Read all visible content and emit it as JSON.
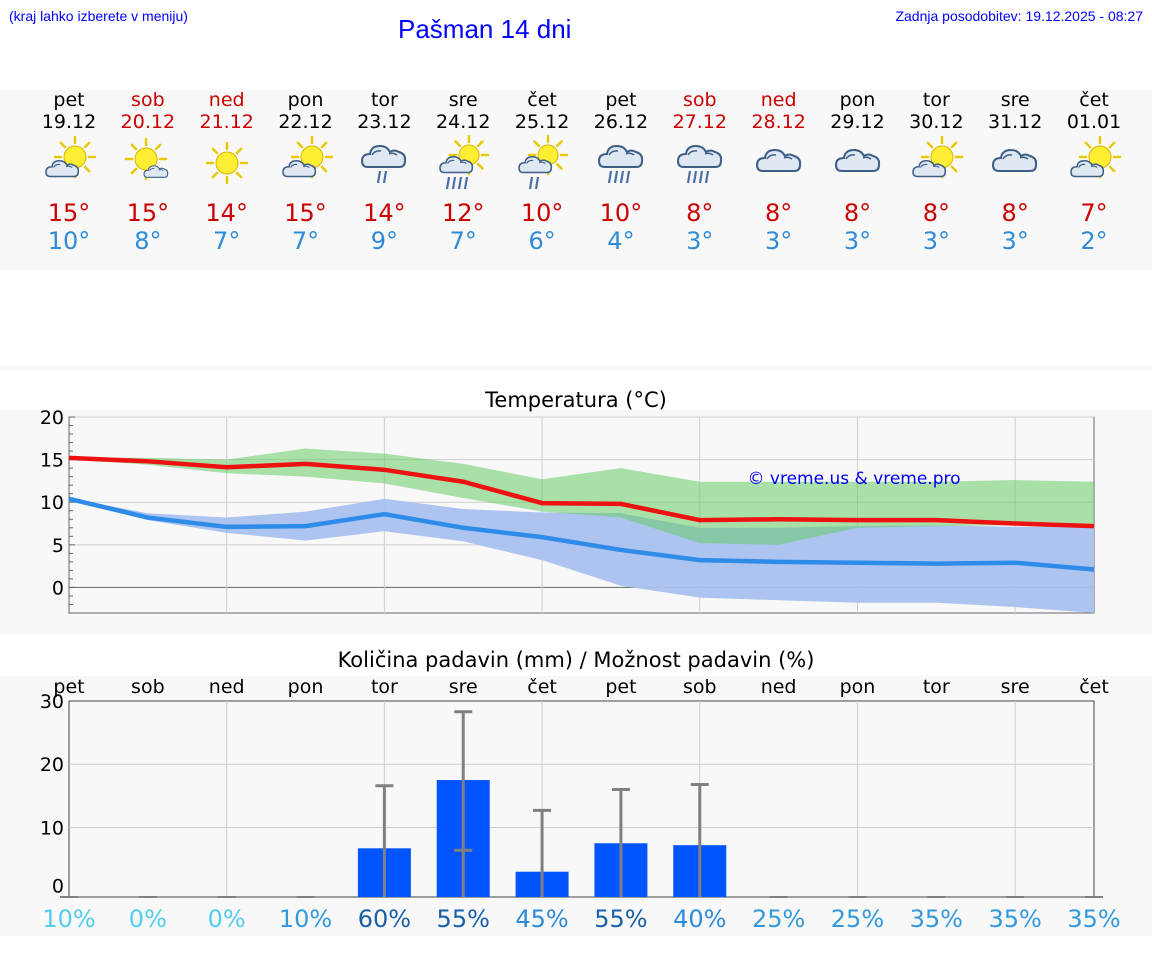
{
  "header": {
    "hint": "(kraj lahko izberete v meniju)",
    "title": "Pašman 14 dni",
    "updated": "Zadnja posodobitev: 19.12.2025 - 08:27"
  },
  "colors": {
    "max_temp": "#cc0000",
    "min_temp": "#2e8bd8",
    "weekend": "#cc0000",
    "precip_bar": "#0055ff",
    "max_band": "#a8e3a0",
    "min_band": "#a9c1f0"
  },
  "days": [
    {
      "name": "pet",
      "date": "19.12",
      "weekend": false,
      "icon": "sun-cloud-icon",
      "max": "15°",
      "min": "10°"
    },
    {
      "name": "sob",
      "date": "20.12",
      "weekend": true,
      "icon": "sun-small-cloud-icon",
      "max": "15°",
      "min": "8°"
    },
    {
      "name": "ned",
      "date": "21.12",
      "weekend": true,
      "icon": "sun-icon",
      "max": "14°",
      "min": "7°"
    },
    {
      "name": "pon",
      "date": "22.12",
      "weekend": false,
      "icon": "sun-cloud-icon",
      "max": "15°",
      "min": "7°"
    },
    {
      "name": "tor",
      "date": "23.12",
      "weekend": false,
      "icon": "cloud-rain-icon",
      "max": "14°",
      "min": "9°"
    },
    {
      "name": "sre",
      "date": "24.12",
      "weekend": false,
      "icon": "sun-cloud-heavy-rain-icon",
      "max": "12°",
      "min": "7°"
    },
    {
      "name": "čet",
      "date": "25.12",
      "weekend": false,
      "icon": "sun-cloud-rain-icon",
      "max": "10°",
      "min": "6°"
    },
    {
      "name": "pet",
      "date": "26.12",
      "weekend": false,
      "icon": "cloud-heavy-rain-icon",
      "max": "10°",
      "min": "4°"
    },
    {
      "name": "sob",
      "date": "27.12",
      "weekend": true,
      "icon": "cloud-heavy-rain-icon",
      "max": "8°",
      "min": "3°"
    },
    {
      "name": "ned",
      "date": "28.12",
      "weekend": true,
      "icon": "cloud-icon",
      "max": "8°",
      "min": "3°"
    },
    {
      "name": "pon",
      "date": "29.12",
      "weekend": false,
      "icon": "cloud-icon",
      "max": "8°",
      "min": "3°"
    },
    {
      "name": "tor",
      "date": "30.12",
      "weekend": false,
      "icon": "sun-cloud-icon",
      "max": "8°",
      "min": "3°"
    },
    {
      "name": "sre",
      "date": "31.12",
      "weekend": false,
      "icon": "cloud-icon",
      "max": "8°",
      "min": "3°"
    },
    {
      "name": "čet",
      "date": "01.01",
      "weekend": false,
      "icon": "sun-cloud-icon",
      "max": "7°",
      "min": "2°"
    }
  ],
  "chart_data": [
    {
      "type": "line",
      "title": "Temperatura (°C)",
      "watermark": "© vreme.us & vreme.pro",
      "ylim": [
        -3,
        20
      ],
      "yticks": [
        "20",
        "15",
        "10",
        "5",
        "0"
      ],
      "categories": [
        "19.12",
        "20.12",
        "21.12",
        "22.12",
        "23.12",
        "24.12",
        "25.12",
        "26.12",
        "27.12",
        "28.12",
        "29.12",
        "30.12",
        "31.12",
        "01.01"
      ],
      "series": [
        {
          "name": "max",
          "values": [
            15.2,
            14.8,
            14.1,
            14.5,
            13.8,
            12.4,
            9.9,
            9.8,
            7.9,
            8.0,
            7.9,
            7.9,
            7.5,
            7.2
          ]
        },
        {
          "name": "min",
          "values": [
            10.4,
            8.2,
            7.1,
            7.2,
            8.6,
            7.0,
            5.9,
            4.4,
            3.2,
            3.0,
            2.9,
            2.8,
            2.9,
            2.1
          ]
        }
      ],
      "bands": [
        {
          "name": "max_range",
          "upper": [
            15.3,
            15.2,
            15.0,
            16.3,
            15.7,
            14.5,
            12.7,
            14.0,
            12.4,
            12.4,
            12.4,
            12.4,
            12.6,
            12.4
          ],
          "lower": [
            15.0,
            14.4,
            13.4,
            13.0,
            12.2,
            10.5,
            8.9,
            8.2,
            5.2,
            5.0,
            7.0,
            7.2,
            7.3,
            7.2
          ]
        },
        {
          "name": "min_range",
          "upper": [
            10.5,
            8.7,
            8.2,
            8.9,
            10.4,
            9.2,
            8.8,
            8.7,
            7.0,
            7.0,
            7.2,
            7.3,
            7.1,
            7.2
          ],
          "lower": [
            10.2,
            7.9,
            6.4,
            5.5,
            6.6,
            5.4,
            3.2,
            0.2,
            -1.2,
            -1.5,
            -1.8,
            -1.8,
            -2.3,
            -3.0
          ]
        }
      ]
    },
    {
      "type": "bar",
      "title": "Količina padavin (mm) / Možnost padavin (%)",
      "ylim": [
        -1,
        30
      ],
      "yticks": [
        "30",
        "20",
        "10",
        "0"
      ],
      "categories": [
        "pet",
        "sob",
        "ned",
        "pon",
        "tor",
        "sre",
        "čet",
        "pet",
        "sob",
        "ned",
        "pon",
        "tor",
        "sre",
        "čet"
      ],
      "values": [
        0,
        0,
        0,
        0,
        6.7,
        17.5,
        3.0,
        7.5,
        7.2,
        0,
        0,
        0,
        0,
        0
      ],
      "error_low": [
        0,
        0,
        0,
        0,
        0,
        6.4,
        0,
        0,
        0,
        0,
        0,
        0,
        0,
        0
      ],
      "error_high": [
        0,
        0,
        0,
        0,
        16.6,
        28.3,
        12.7,
        16.0,
        16.8,
        0,
        0,
        0,
        0,
        0
      ],
      "probability": [
        "10%",
        "0%",
        "0%",
        "10%",
        "60%",
        "55%",
        "45%",
        "55%",
        "40%",
        "25%",
        "25%",
        "35%",
        "35%",
        "35%"
      ],
      "probability_colors": [
        "#55ccee",
        "#55ccee",
        "#55ccee",
        "#3399dd",
        "#1a5fa8",
        "#1a5fa8",
        "#2e8bd8",
        "#1a5fa8",
        "#2e8bd8",
        "#3399dd",
        "#3399dd",
        "#3399dd",
        "#3399dd",
        "#3399dd"
      ]
    }
  ]
}
